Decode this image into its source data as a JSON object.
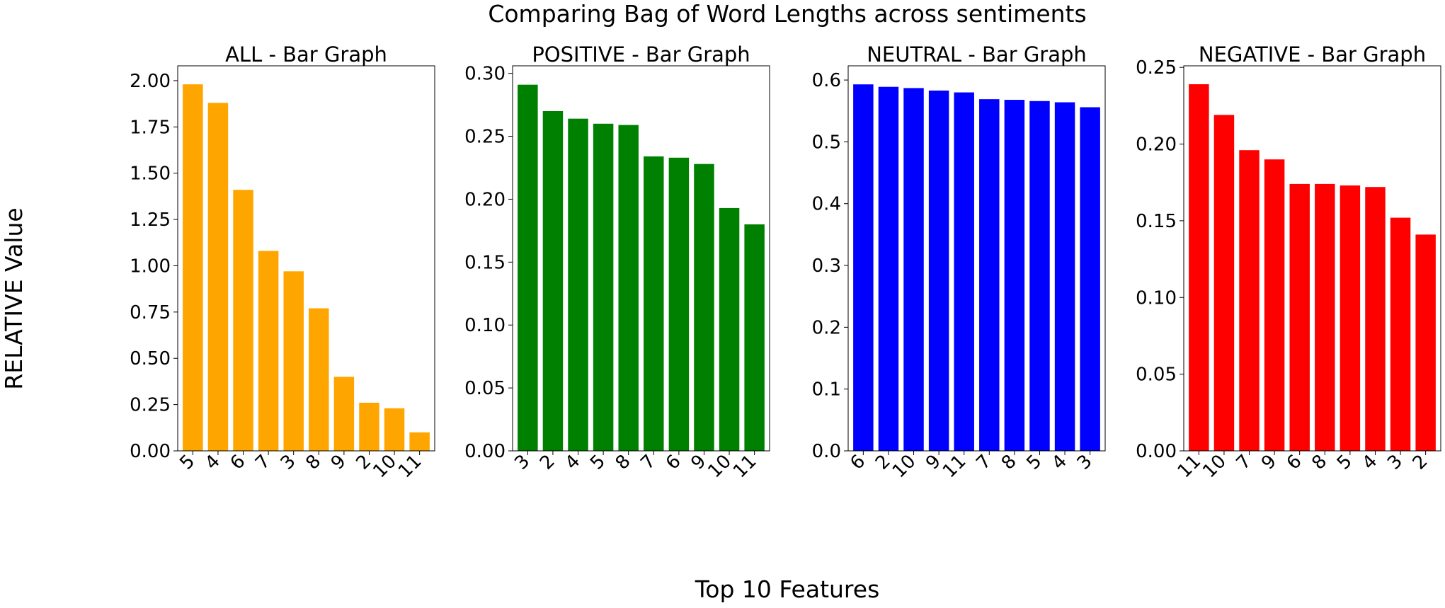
{
  "figure": {
    "suptitle": "Comparing Bag of Word Lengths across sentiments",
    "xlabel": "Top 10 Features",
    "ylabel": "RELATIVE Value"
  },
  "chart_data": [
    {
      "type": "bar",
      "title": "ALL - Bar Graph",
      "color": "#FFA500",
      "categories": [
        "5",
        "4",
        "6",
        "7",
        "3",
        "8",
        "9",
        "2",
        "10",
        "11"
      ],
      "values": [
        1.98,
        1.88,
        1.41,
        1.08,
        0.97,
        0.77,
        0.4,
        0.26,
        0.23,
        0.1
      ],
      "ylim": [
        0,
        2.08
      ],
      "yticks": [
        "0.00",
        "0.25",
        "0.50",
        "0.75",
        "1.00",
        "1.25",
        "1.50",
        "1.75",
        "2.00"
      ]
    },
    {
      "type": "bar",
      "title": "POSITIVE - Bar Graph",
      "color": "#008000",
      "categories": [
        "3",
        "2",
        "4",
        "5",
        "8",
        "7",
        "6",
        "9",
        "10",
        "11"
      ],
      "values": [
        0.291,
        0.27,
        0.264,
        0.26,
        0.259,
        0.234,
        0.233,
        0.228,
        0.193,
        0.18
      ],
      "ylim": [
        0,
        0.306
      ],
      "yticks": [
        "0.00",
        "0.05",
        "0.10",
        "0.15",
        "0.20",
        "0.25",
        "0.30"
      ]
    },
    {
      "type": "bar",
      "title": "NEUTRAL - Bar Graph",
      "color": "#0000FF",
      "categories": [
        "6",
        "2",
        "10",
        "9",
        "11",
        "7",
        "8",
        "5",
        "4",
        "3"
      ],
      "values": [
        0.593,
        0.589,
        0.587,
        0.583,
        0.58,
        0.569,
        0.568,
        0.566,
        0.564,
        0.556
      ],
      "ylim": [
        0,
        0.623
      ],
      "yticks": [
        "0.0",
        "0.1",
        "0.2",
        "0.3",
        "0.4",
        "0.5",
        "0.6"
      ]
    },
    {
      "type": "bar",
      "title": "NEGATIVE - Bar Graph",
      "color": "#FF0000",
      "categories": [
        "11",
        "10",
        "7",
        "9",
        "6",
        "8",
        "5",
        "4",
        "3",
        "2"
      ],
      "values": [
        0.239,
        0.219,
        0.196,
        0.19,
        0.174,
        0.174,
        0.173,
        0.172,
        0.152,
        0.141
      ],
      "ylim": [
        0,
        0.251
      ],
      "yticks": [
        "0.00",
        "0.05",
        "0.10",
        "0.15",
        "0.20",
        "0.25"
      ]
    }
  ]
}
